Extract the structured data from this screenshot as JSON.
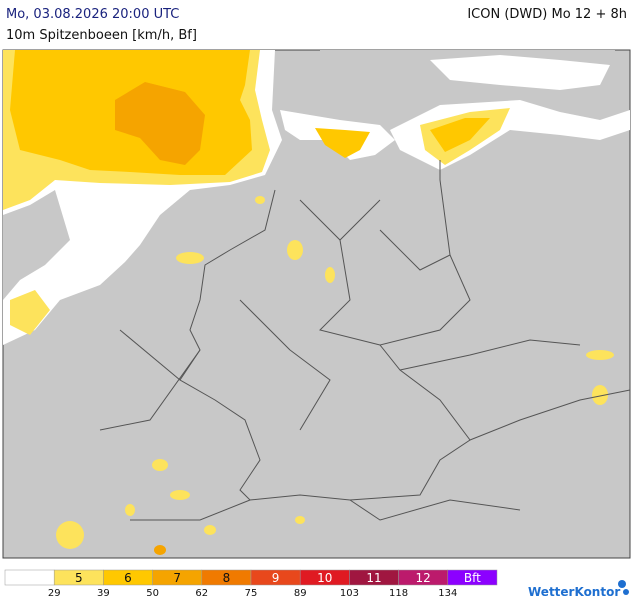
{
  "header": {
    "datetime": "Mo, 03.08.2026 20:00 UTC",
    "model": "ICON (DWD) Mo 12 + 8h",
    "parameter": "10m Spitzenboeen [km/h, Bf]"
  },
  "legend": {
    "classes": [
      {
        "color": "#ffffff"
      },
      {
        "color": "#fde35c",
        "bft": 5
      },
      {
        "color": "#ffc800",
        "bft": 6
      },
      {
        "color": "#f5a400",
        "bft": 7
      },
      {
        "color": "#f07a00",
        "bft": 8
      },
      {
        "color": "#e8481c",
        "bft": 9
      },
      {
        "color": "#e01a22",
        "bft": 10
      },
      {
        "color": "#a01640",
        "bft": 11
      },
      {
        "color": "#bc1a6c",
        "bft": 12
      },
      {
        "color": "#8c00ff",
        "bft": "Bft"
      }
    ],
    "thresholds": [
      29,
      39,
      50,
      62,
      75,
      89,
      103,
      118,
      134
    ]
  },
  "brand": "WetterKontor"
}
